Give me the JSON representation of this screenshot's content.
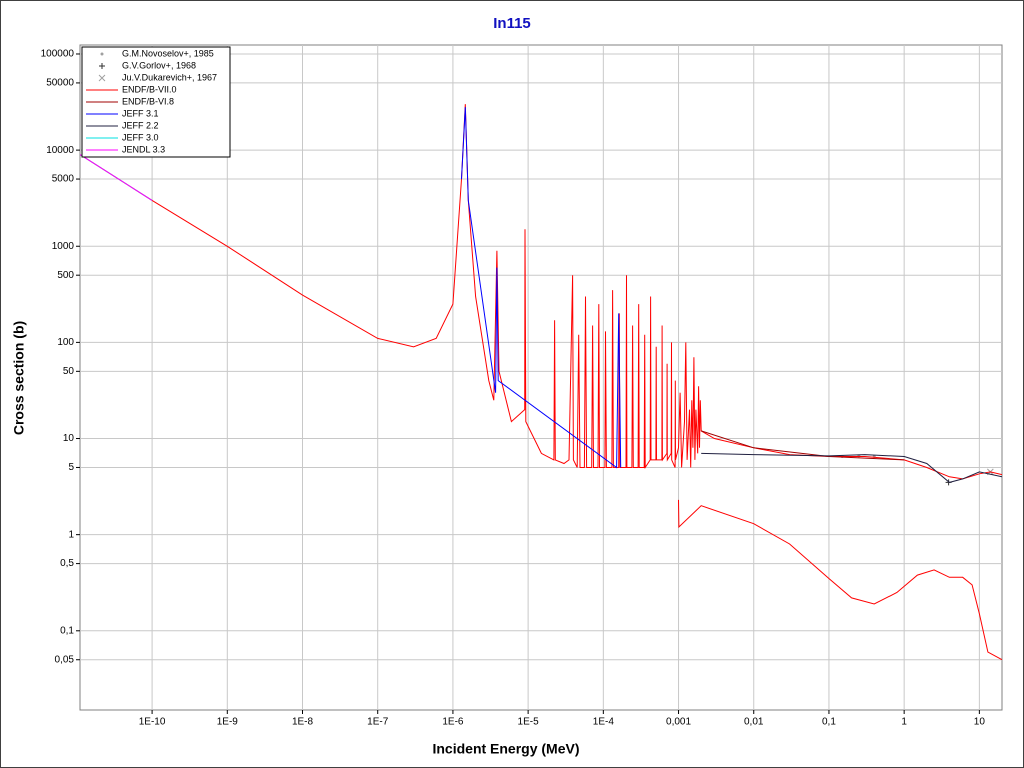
{
  "chart_data": {
    "type": "line",
    "title": "In115",
    "x_label": "Incident Energy (MeV)",
    "y_label": "Cross section (b)",
    "log_x": true,
    "log_y": true,
    "grid": true,
    "legend": "upper left",
    "xlim": [
      1.1e-11,
      20
    ],
    "ylim": [
      0.015,
      124000
    ],
    "xticks": [
      {
        "value": 1e-10,
        "label": "1E-10"
      },
      {
        "value": 1e-09,
        "label": "1E-9"
      },
      {
        "value": 1e-08,
        "label": "1E-8"
      },
      {
        "value": 1e-07,
        "label": "1E-7"
      },
      {
        "value": 1e-06,
        "label": "1E-6"
      },
      {
        "value": 1e-05,
        "label": "1E-5"
      },
      {
        "value": 0.0001,
        "label": "1E-4"
      },
      {
        "value": 0.001,
        "label": "0,001"
      },
      {
        "value": 0.01,
        "label": "0,01"
      },
      {
        "value": 0.1,
        "label": "0,1"
      },
      1,
      10
    ],
    "yticks": [
      {
        "value": 0.05,
        "label": "0,05"
      },
      {
        "value": 0.1,
        "label": "0,1"
      },
      {
        "value": 0.5,
        "label": "0,5"
      },
      1,
      5,
      10,
      50,
      100,
      500,
      1000,
      5000,
      10000,
      50000,
      100000
    ],
    "series": [
      {
        "name": "G.M.Novoselov+, 1985",
        "color": "#a0a0a0",
        "marker": "dot",
        "x": [
          0.15,
          0.25,
          0.4
        ],
        "values": [
          6.5,
          6.6,
          6.5
        ]
      },
      {
        "name": "G.V.Gorlov+, 1968",
        "color": "#303030",
        "marker": "plus",
        "x": [
          3.9
        ],
        "values": [
          3.5
        ]
      },
      {
        "name": "Ju.V.Dukarevich+, 1967",
        "color": "#a0a0a0",
        "marker": "cross",
        "x": [
          14
        ],
        "values": [
          4.5
        ]
      },
      {
        "name": "ENDF/B-VII.0",
        "color": "#ff0000",
        "x": [
          1.1e-11,
          1e-10,
          1e-09,
          1e-08,
          1e-07,
          3e-07,
          6e-07,
          1e-06,
          1.3e-06,
          1.46e-06,
          1.6e-06,
          2e-06,
          3e-06,
          3.5e-06,
          3.85e-06,
          4.1e-06,
          6e-06,
          9e-06,
          9.1e-06,
          9.3e-06,
          1.5e-05,
          2.2e-05,
          2.25e-05,
          2.3e-05,
          3e-05,
          3.5e-05,
          3.9e-05,
          4e-05,
          4.5e-05,
          4.7e-05,
          4.9e-05,
          5.6e-05,
          5.8e-05,
          6e-05,
          7e-05,
          7.2e-05,
          7.4e-05,
          8.5e-05,
          8.7e-05,
          8.9e-05,
          0.000105,
          0.000107,
          0.00011,
          0.00013,
          0.000133,
          0.000136,
          0.00016,
          0.000163,
          0.000166,
          0.0002,
          0.000203,
          0.000206,
          0.00024,
          0.000245,
          0.00025,
          0.00029,
          0.000295,
          0.0003,
          0.00035,
          0.000355,
          0.00036,
          0.00042,
          0.000425,
          0.00043,
          0.0005,
          0.000505,
          0.00051,
          0.0006,
          0.000605,
          0.00061,
          0.0007,
          0.000705,
          0.00071,
          0.0008,
          0.000805,
          0.00081,
          0.0009,
          0.000905,
          0.00091,
          0.001,
          0.00105,
          0.0011,
          0.0012,
          0.00125,
          0.0013,
          0.0014,
          0.00145,
          0.0015,
          0.00155,
          0.0016,
          0.00165,
          0.0017,
          0.0018,
          0.00185,
          0.0019,
          0.00195,
          0.002,
          0.003,
          0.01,
          0.03,
          0.1,
          0.3,
          1,
          2,
          4,
          6,
          10,
          14,
          20,
          null,
          0.001,
          0.00101,
          0.002,
          0.01,
          0.03,
          0.1,
          0.2,
          0.4,
          0.8,
          1.5,
          2.5,
          4,
          6,
          8,
          10,
          13,
          20
        ],
        "values": [
          9000,
          3000,
          1000,
          310,
          110,
          90,
          110,
          250,
          5000,
          30000,
          3000,
          300,
          40,
          25,
          900,
          50,
          15,
          20,
          1500,
          15,
          7,
          6,
          170,
          6,
          5.5,
          6,
          500,
          6,
          5,
          120,
          5,
          5,
          300,
          5,
          5,
          150,
          5,
          5,
          250,
          5,
          5,
          130,
          5,
          5,
          350,
          5,
          5,
          200,
          5,
          5,
          500,
          5,
          5,
          150,
          5,
          5,
          250,
          5,
          5,
          120,
          5,
          6,
          300,
          6,
          6,
          90,
          6,
          6,
          150,
          6,
          7,
          60,
          6,
          7,
          100,
          6,
          5,
          40,
          6,
          8,
          30,
          5,
          15,
          100,
          6,
          20,
          5,
          25,
          8,
          70,
          6,
          20,
          7,
          35,
          8,
          25,
          12,
          10,
          8,
          6.8,
          6.5,
          6.5,
          6,
          5,
          4,
          3.8,
          4.3,
          4.5,
          4.2,
          null,
          2.3,
          1.2,
          2,
          1.3,
          0.8,
          0.35,
          0.22,
          0.19,
          0.25,
          0.38,
          0.43,
          0.36,
          0.36,
          0.3,
          0.15,
          0.06,
          0.05
        ]
      },
      {
        "name": "ENDF/B-VI.8",
        "color": "#a00000",
        "x": [
          0.002,
          0.01,
          0.1,
          1
        ],
        "values": [
          12,
          8,
          6.5,
          6
        ]
      },
      {
        "name": "JEFF 3.1",
        "color": "#0000ff",
        "x": [
          1.3e-06,
          1.46e-06,
          1.6e-06,
          3.7e-06,
          3.85e-06,
          4e-06,
          0.00015,
          0.00016,
          0.00017
        ],
        "values": [
          5000,
          28000,
          3000,
          30,
          600,
          40,
          5,
          200,
          5
        ]
      },
      {
        "name": "JEFF 2.2",
        "color": "#202040",
        "x": [
          0.002,
          0.01,
          0.1,
          0.3,
          1,
          2,
          4,
          6,
          10,
          20
        ],
        "values": [
          7,
          6.8,
          6.6,
          6.8,
          6.5,
          5.5,
          3.5,
          3.8,
          4.5,
          4
        ]
      },
      {
        "name": "JEFF 3.0",
        "color": "#00e0e0",
        "x": [
          1.1e-11,
          1e-10
        ],
        "values": [
          9000,
          3000
        ]
      },
      {
        "name": "JENDL 3.3",
        "color": "#ff00ff",
        "x": [
          1.1e-11,
          1e-10
        ],
        "values": [
          9000,
          3000
        ]
      }
    ]
  }
}
